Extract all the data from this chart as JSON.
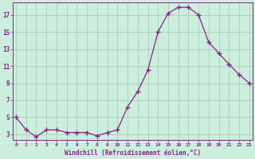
{
  "x": [
    0,
    1,
    2,
    3,
    4,
    5,
    6,
    7,
    8,
    9,
    10,
    11,
    12,
    13,
    14,
    15,
    16,
    17,
    18,
    19,
    20,
    21,
    22,
    23
  ],
  "y": [
    5.0,
    3.5,
    2.7,
    3.5,
    3.5,
    3.2,
    3.2,
    3.2,
    2.8,
    3.2,
    3.5,
    6.2,
    8.0,
    10.5,
    15.0,
    17.2,
    17.9,
    17.9,
    17.0,
    13.8,
    12.5,
    11.2,
    10.0,
    9.0
  ],
  "line_color": "#882288",
  "marker": "+",
  "marker_size": 4,
  "bg_color": "#cceedd",
  "grid_color": "#aaccbb",
  "xlabel": "Windchill (Refroidissement éolien,°C)",
  "xlabel_color": "#882288",
  "tick_color": "#882288",
  "yticks": [
    3,
    5,
    7,
    9,
    11,
    13,
    15,
    17
  ],
  "xtick_labels": [
    "0",
    "1",
    "2",
    "3",
    "4",
    "5",
    "6",
    "7",
    "8",
    "9",
    "10",
    "11",
    "12",
    "13",
    "14",
    "15",
    "16",
    "17",
    "18",
    "19",
    "20",
    "21",
    "22",
    "23"
  ],
  "xlim": [
    -0.3,
    23.3
  ],
  "ylim": [
    2.3,
    18.5
  ]
}
